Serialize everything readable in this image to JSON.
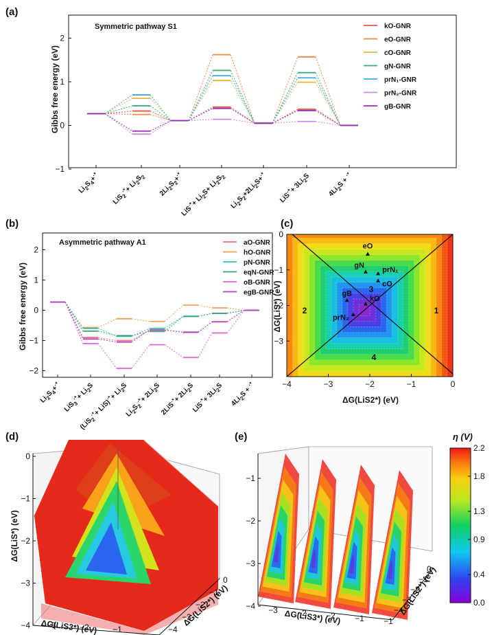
{
  "colors": {
    "kO": "#e8534a",
    "eO": "#e8893a",
    "cO": "#e2b43a",
    "gN": "#3aaa78",
    "prN1": "#3aa8e0",
    "prN2": "#c88ae8",
    "gB": "#9a28b8",
    "aO": "#f0707a",
    "hO": "#f0a050",
    "pN": "#30c0b0",
    "eqN": "#3aa070",
    "oB": "#e060e0",
    "egB": "#b040c0"
  },
  "panels": {
    "a": {
      "label": "(a)",
      "title": "Symmetric pathway S1",
      "ylabel": "Gibbs free energy (eV)",
      "y_ticks": [
        "2",
        "1",
        "0",
        "−1"
      ],
      "x_labels": [
        "Li2S4+*",
        "LiS2*+ Li2S2",
        "2Li2S2+*",
        "LiS*+ Li2S+ Li2S2",
        "Li2S2+2Li2S+*",
        "LiS*+ 3Li2S",
        "4Li2S + *"
      ]
    },
    "b": {
      "label": "(b)",
      "title": "Asymmetric pathway A1",
      "ylabel": "Gibbs free energy (eV)",
      "y_ticks": [
        "2",
        "1",
        "0",
        "−1",
        "−2"
      ],
      "x_labels": [
        "Li2S4+*",
        "LiS3*+ Li2S",
        "(LiS2*+ LiS)*+ Li2S",
        "Li2S2*+ 2Li2S",
        "2LiS*+ 2Li2S",
        "LiS*+ 3Li2S",
        "4Li2S + *"
      ]
    },
    "c": {
      "label": "(c)",
      "xlabel": "ΔG(LiS2*) (eV)",
      "ylabel": "ΔG(LiS*) (eV)",
      "x_ticks": [
        "−4",
        "−3",
        "−2",
        "−1",
        "0"
      ],
      "y_ticks": [
        "0",
        "−1",
        "−2",
        "−3"
      ],
      "regions": [
        "1",
        "2",
        "3",
        "4"
      ],
      "points": [
        {
          "name": "eO",
          "x": -2.05,
          "y": -0.55
        },
        {
          "name": "gN",
          "x": -2.1,
          "y": -1.05
        },
        {
          "name": "prN1",
          "x": -1.8,
          "y": -1.1
        },
        {
          "name": "cO",
          "x": -1.8,
          "y": -1.3
        },
        {
          "name": "gB",
          "x": -2.55,
          "y": -1.85
        },
        {
          "name": "kO",
          "x": -2.1,
          "y": -1.95
        },
        {
          "name": "prN2",
          "x": -2.4,
          "y": -2.25
        }
      ]
    },
    "d": {
      "label": "(d)",
      "xlabel": "ΔG(LiS3*) (eV)",
      "zlabel": "ΔG(LiS*) (eV)",
      "ylabel": "ΔG(LiS2*) (eV)",
      "z_ticks": [
        "0",
        "−1",
        "−2",
        "−3",
        "−4"
      ],
      "x_ticks": [
        "−3",
        "−2",
        "−1"
      ],
      "y_ticks": [
        "0",
        "−1",
        "−2",
        "−3",
        "−4"
      ]
    },
    "e": {
      "label": "(e)",
      "xlabel": "ΔG(LiS3*) (eV)",
      "ylabel": "ΔG(LiS2*) (eV)",
      "z_ticks": [
        "−1",
        "−2",
        "−3",
        "−4"
      ],
      "x_ticks": [
        "−3",
        "−2",
        "−2",
        "−1",
        "−1"
      ],
      "y_ticks": [
        "0",
        "−1",
        "−2",
        "−3",
        "−4"
      ]
    }
  },
  "colorbar": {
    "title": "η (V)",
    "ticks": [
      "2.2",
      "1.8",
      "1.3",
      "0.9",
      "0.4",
      "0.0"
    ]
  },
  "chart_data": [
    {
      "panel": "a",
      "type": "line",
      "title": "Symmetric pathway S1",
      "xlabel": "",
      "ylabel": "Gibbs free energy (eV)",
      "ylim": [
        -1,
        2.5
      ],
      "categories": [
        "Li2S4+*",
        "LiS2*+ Li2S2",
        "2Li2S2+*",
        "LiS*+ Li2S+ Li2S2",
        "Li2S2+2Li2S+*",
        "LiS*+ 3Li2S",
        "4Li2S + *"
      ],
      "series": [
        {
          "name": "kO-GNR",
          "values": [
            0.27,
            0.33,
            0.11,
            0.42,
            0.05,
            0.37,
            0.0
          ]
        },
        {
          "name": "eO-GNR",
          "values": [
            0.27,
            0.25,
            0.11,
            1.62,
            0.05,
            1.57,
            0.0
          ]
        },
        {
          "name": "cO-GNR",
          "values": [
            0.27,
            0.62,
            0.11,
            1.03,
            0.05,
            0.99,
            0.0
          ]
        },
        {
          "name": "gN-GNR",
          "values": [
            0.27,
            0.45,
            0.11,
            1.26,
            0.05,
            1.21,
            0.0
          ]
        },
        {
          "name": "prN1-GNR",
          "values": [
            0.27,
            0.7,
            0.11,
            1.14,
            0.05,
            1.09,
            0.0
          ]
        },
        {
          "name": "prN2-GNR",
          "values": [
            0.27,
            -0.2,
            0.11,
            0.14,
            0.05,
            0.09,
            0.0
          ]
        },
        {
          "name": "gB-GNR",
          "values": [
            0.27,
            -0.13,
            0.11,
            0.39,
            0.05,
            0.34,
            0.0
          ]
        }
      ]
    },
    {
      "panel": "b",
      "type": "line",
      "title": "Asymmetric pathway A1",
      "xlabel": "",
      "ylabel": "Gibbs free energy (eV)",
      "ylim": [
        -2.1,
        2.5
      ],
      "categories": [
        "Li2S4+*",
        "LiS3*+ Li2S",
        "(LiS2*+ LiS)*+ Li2S",
        "Li2S2*+ 2Li2S",
        "2LiS*+ 2Li2S",
        "LiS*+ 3Li2S",
        "4Li2S + *"
      ],
      "series": [
        {
          "name": "aO-GNR",
          "values": [
            0.27,
            -0.9,
            -1.0,
            -0.65,
            -0.72,
            -0.38,
            0.0
          ]
        },
        {
          "name": "hO-GNR",
          "values": [
            0.27,
            -0.57,
            -0.28,
            -0.37,
            0.17,
            0.08,
            0.0
          ]
        },
        {
          "name": "pN-GNR",
          "values": [
            0.27,
            -0.6,
            -0.86,
            -0.6,
            -0.2,
            -0.1,
            0.0
          ]
        },
        {
          "name": "eqN-GNR",
          "values": [
            0.27,
            -0.69,
            -0.84,
            -0.7,
            -0.2,
            -0.1,
            0.0
          ]
        },
        {
          "name": "oB-GNR",
          "values": [
            0.27,
            -1.1,
            -1.92,
            -1.14,
            -1.56,
            -0.75,
            0.0
          ]
        },
        {
          "name": "egB-GNR",
          "values": [
            0.27,
            -0.95,
            -1.05,
            -0.65,
            -0.73,
            -0.38,
            0.0
          ]
        }
      ]
    },
    {
      "panel": "c",
      "type": "heatmap",
      "xlabel": "ΔG(LiS2*) (eV)",
      "ylabel": "ΔG(LiS*) (eV)",
      "xlim": [
        -4,
        0
      ],
      "ylim": [
        -4,
        0
      ],
      "center": [
        -2.13,
        -2.13
      ],
      "colorscale": {
        "min": 0.0,
        "max": 2.2,
        "label": "η (V)"
      }
    }
  ]
}
